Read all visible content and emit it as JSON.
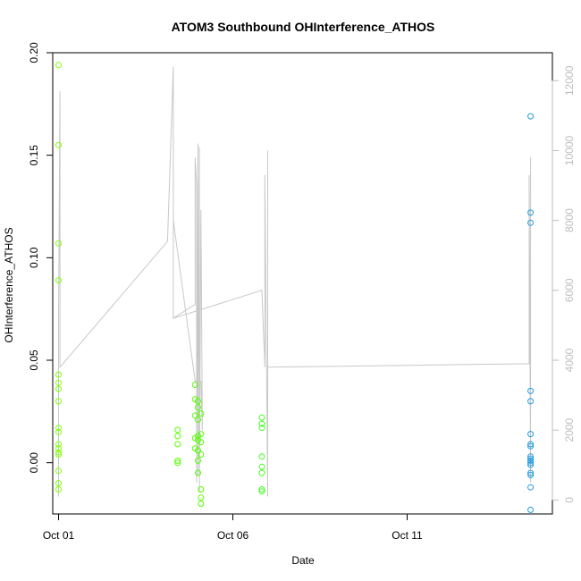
{
  "chart_data": {
    "type": "scatter",
    "title": "ATOM3 Southbound OHInterference_ATHOS",
    "xlabel": "Date",
    "ylabel": "OHInterference_ATHOS",
    "x_unit": "date",
    "xlim": [
      "2016-09-30T20:00",
      "2016-10-15T04:00"
    ],
    "ylim": [
      -0.025,
      0.2
    ],
    "y_ticks": [
      0.0,
      0.05,
      0.1,
      0.15,
      0.2
    ],
    "y_tick_labels": [
      "0.00",
      "0.05",
      "0.10",
      "0.15",
      "0.20"
    ],
    "x_ticks": [
      "2016-10-01T00:00",
      "2016-10-06T00:00",
      "2016-10-11T00:00"
    ],
    "x_tick_labels": [
      "Oct 01",
      "Oct 06",
      "Oct 11"
    ],
    "y2lim": [
      -400,
      12800
    ],
    "y2_ticks": [
      0,
      2000,
      4000,
      6000,
      8000,
      10000,
      12000
    ],
    "y2_tick_labels": [
      "0",
      "2000",
      "4000",
      "6000",
      "8000",
      "10000",
      "12000"
    ],
    "y2_color": "#bebebe",
    "grid": false,
    "legend": "none",
    "series": [
      {
        "color": "#80ff00",
        "marker": "open-circle",
        "points": [
          [
            "2016-10-01T00:00",
            0.194
          ],
          [
            "2016-10-01T00:00",
            0.155
          ],
          [
            "2016-10-01T00:00",
            0.107
          ],
          [
            "2016-10-01T00:00",
            0.089
          ],
          [
            "2016-10-01T00:00",
            0.043
          ],
          [
            "2016-10-01T00:00",
            0.039
          ],
          [
            "2016-10-01T00:00",
            0.036
          ],
          [
            "2016-10-01T00:00",
            0.03
          ],
          [
            "2016-10-01T00:00",
            0.017
          ],
          [
            "2016-10-01T00:00",
            0.015
          ],
          [
            "2016-10-01T00:00",
            0.009
          ],
          [
            "2016-10-01T00:00",
            0.007
          ],
          [
            "2016-10-01T00:00",
            0.005
          ],
          [
            "2016-10-01T00:00",
            0.004
          ],
          [
            "2016-10-01T00:00",
            -0.004
          ],
          [
            "2016-10-01T00:00",
            -0.01
          ],
          [
            "2016-10-01T00:00",
            -0.013
          ]
        ]
      },
      {
        "color": "#55ff00",
        "marker": "open-circle",
        "points": [
          [
            "2016-10-04T10:00",
            0.016
          ],
          [
            "2016-10-04T10:00",
            0.013
          ],
          [
            "2016-10-04T10:00",
            0.009
          ],
          [
            "2016-10-04T10:00",
            0.001
          ],
          [
            "2016-10-04T10:00",
            0.0
          ],
          [
            "2016-10-04T22:00",
            0.038
          ],
          [
            "2016-10-04T22:00",
            0.031
          ],
          [
            "2016-10-04T22:00",
            0.023
          ],
          [
            "2016-10-04T22:00",
            0.012
          ],
          [
            "2016-10-04T22:00",
            0.007
          ],
          [
            "2016-10-05T00:00",
            0.03
          ],
          [
            "2016-10-05T00:00",
            0.027
          ],
          [
            "2016-10-05T00:00",
            0.021
          ],
          [
            "2016-10-05T00:00",
            0.013
          ],
          [
            "2016-10-05T00:00",
            0.011
          ],
          [
            "2016-10-05T00:00",
            0.006
          ],
          [
            "2016-10-05T00:00",
            0.001
          ],
          [
            "2016-10-05T00:00",
            -0.005
          ],
          [
            "2016-10-05T02:00",
            0.024
          ],
          [
            "2016-10-05T02:00",
            0.014
          ],
          [
            "2016-10-05T02:00",
            0.01
          ],
          [
            "2016-10-05T02:00",
            0.004
          ],
          [
            "2016-10-05T02:00",
            -0.013
          ],
          [
            "2016-10-05T02:00",
            -0.017
          ],
          [
            "2016-10-05T02:00",
            -0.02
          ]
        ]
      },
      {
        "color": "#40ff20",
        "marker": "open-circle",
        "points": [
          [
            "2016-10-06T20:00",
            0.022
          ],
          [
            "2016-10-06T20:00",
            0.019
          ],
          [
            "2016-10-06T20:00",
            0.017
          ],
          [
            "2016-10-06T20:00",
            0.003
          ],
          [
            "2016-10-06T20:00",
            -0.002
          ],
          [
            "2016-10-06T20:00",
            -0.005
          ],
          [
            "2016-10-06T20:00",
            -0.013
          ],
          [
            "2016-10-06T20:00",
            -0.014
          ]
        ]
      },
      {
        "color": "#1e9bdc",
        "marker": "open-circle",
        "points": [
          [
            "2016-10-14T13:00",
            0.169
          ],
          [
            "2016-10-14T13:00",
            0.122
          ],
          [
            "2016-10-14T13:00",
            0.117
          ],
          [
            "2016-10-14T13:00",
            0.035
          ],
          [
            "2016-10-14T13:00",
            0.03
          ],
          [
            "2016-10-14T13:00",
            0.014
          ],
          [
            "2016-10-14T13:00",
            0.009
          ],
          [
            "2016-10-14T13:00",
            0.008
          ],
          [
            "2016-10-14T13:00",
            0.003
          ],
          [
            "2016-10-14T13:00",
            0.002
          ],
          [
            "2016-10-14T13:00",
            0.001
          ],
          [
            "2016-10-14T13:00",
            0.0
          ],
          [
            "2016-10-14T13:00",
            -0.001
          ],
          [
            "2016-10-14T13:00",
            -0.005
          ],
          [
            "2016-10-14T13:00",
            -0.006
          ],
          [
            "2016-10-14T13:00",
            -0.012
          ],
          [
            "2016-10-14T13:00",
            -0.023
          ]
        ]
      }
    ],
    "secondary_line": {
      "color": "#c8c8c8",
      "axis": "right",
      "points": [
        [
          "2016-10-01T00:00",
          100
        ],
        [
          "2016-10-01T00:00",
          5200
        ],
        [
          "2016-10-01T01:00",
          11700
        ],
        [
          "2016-10-01T01:00",
          4200
        ],
        [
          "2016-10-01T01:00",
          3800
        ],
        [
          "2016-10-04T03:00",
          7400
        ],
        [
          "2016-10-04T07:00",
          12400
        ],
        [
          "2016-10-04T07:00",
          5200
        ],
        [
          "2016-10-04T22:00",
          5600
        ],
        [
          "2016-10-04T22:00",
          9800
        ],
        [
          "2016-10-04T23:00",
          9000
        ],
        [
          "2016-10-04T23:00",
          500
        ],
        [
          "2016-10-05T00:00",
          10200
        ],
        [
          "2016-10-05T00:00",
          700
        ],
        [
          "2016-10-05T01:00",
          10100
        ],
        [
          "2016-10-05T01:00",
          200
        ],
        [
          "2016-10-05T02:00",
          8300
        ],
        [
          "2016-10-05T03:00",
          2000
        ],
        [
          "2016-10-05T02:00",
          3400
        ],
        [
          "2016-10-04T22:00",
          3400
        ],
        [
          "2016-10-04T07:00",
          8000
        ],
        [
          "2016-10-04T07:00",
          5200
        ],
        [
          "2016-10-06T20:00",
          6000
        ],
        [
          "2016-10-06T22:00",
          3800
        ],
        [
          "2016-10-06T22:00",
          9300
        ],
        [
          "2016-10-07T00:00",
          100
        ],
        [
          "2016-10-07T00:00",
          10000
        ],
        [
          "2016-10-07T00:00",
          3800
        ],
        [
          "2016-10-14T12:00",
          3900
        ],
        [
          "2016-10-14T12:00",
          9300
        ],
        [
          "2016-10-14T13:00",
          500
        ],
        [
          "2016-10-14T13:00",
          9800
        ]
      ]
    }
  }
}
